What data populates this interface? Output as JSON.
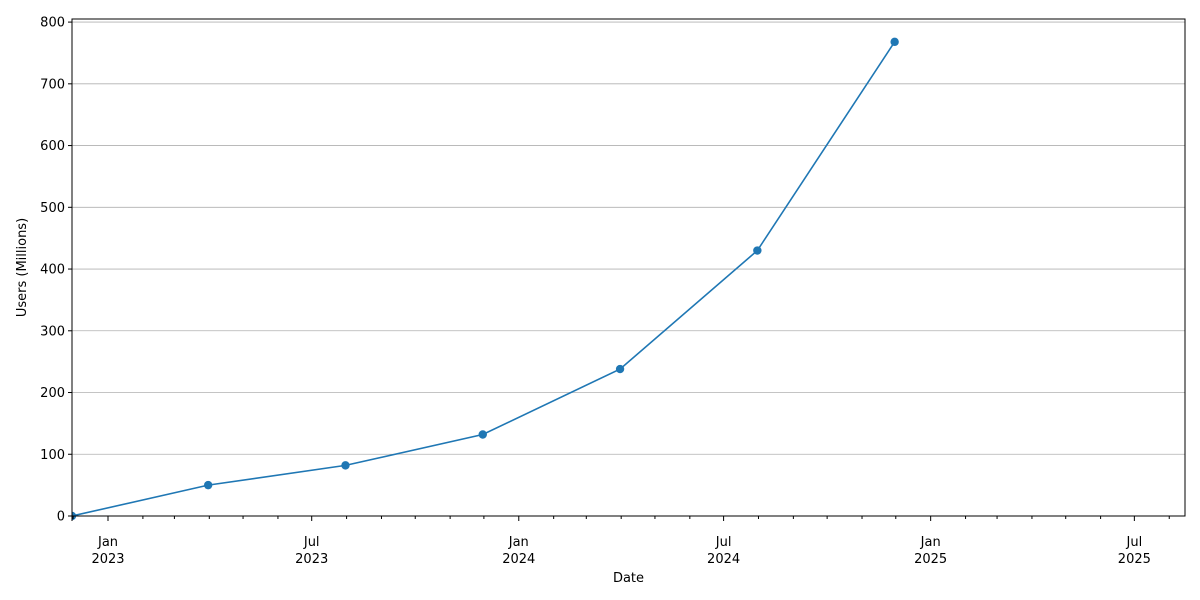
{
  "chart_data": {
    "type": "line",
    "xlabel": "Date",
    "ylabel": "Users (Millions)",
    "x": [
      "2022-11-30",
      "2023-03-31",
      "2023-07-31",
      "2023-11-30",
      "2024-03-31",
      "2024-07-31",
      "2024-11-30"
    ],
    "series": [
      {
        "values": [
          0,
          50,
          82,
          132,
          238,
          430,
          768
        ],
        "color": "#1f77b4"
      }
    ],
    "xlim": [
      "2022-11-30",
      "2025-08-15"
    ],
    "ylim": [
      0,
      805
    ],
    "y_ticks": [
      0,
      100,
      200,
      300,
      400,
      500,
      600,
      700,
      800
    ],
    "x_major_ticks": [
      {
        "date": "2023-01-01",
        "month": "Jan",
        "year": "2023"
      },
      {
        "date": "2023-07-01",
        "month": "Jul",
        "year": "2023"
      },
      {
        "date": "2024-01-01",
        "month": "Jan",
        "year": "2024"
      },
      {
        "date": "2024-07-01",
        "month": "Jul",
        "year": "2024"
      },
      {
        "date": "2025-01-01",
        "month": "Jan",
        "year": "2025"
      },
      {
        "date": "2025-07-01",
        "month": "Jul",
        "year": "2025"
      }
    ],
    "grid": "horizontal",
    "legend": "none"
  }
}
